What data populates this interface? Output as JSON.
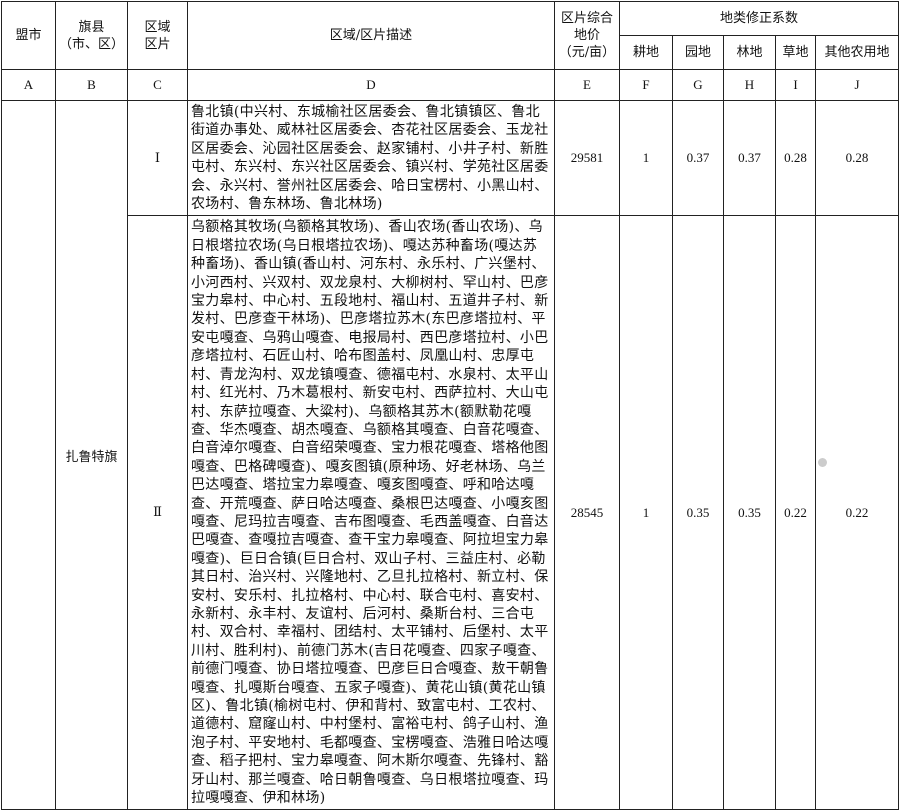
{
  "headers": {
    "league_city": "盟市",
    "banner_county": "旗县\n（市、区）",
    "zone": "区域\n区片",
    "description": "区域/区片描述",
    "price": "区片综合\n地价\n（元/亩）",
    "correction": "地类修正系数",
    "farmland": "耕地",
    "garden": "园地",
    "forest": "林地",
    "grass": "草地",
    "other": "其他农用地"
  },
  "letters": [
    "A",
    "B",
    "C",
    "D",
    "E",
    "F",
    "G",
    "H",
    "I",
    "J"
  ],
  "county": "扎鲁特旗",
  "rows": [
    {
      "zone": "Ⅰ",
      "description": "鲁北镇(中兴村、东城榆社区居委会、鲁北镇镇区、鲁北街道办事处、威林社区居委会、杏花社区居委会、玉龙社区居委会、沁园社区居委会、赵家铺村、小井子村、新胜屯村、东兴村、东兴社区居委会、镇兴村、学苑社区居委会、永兴村、誉州社区居委会、哈日宝楞村、小黑山村、农场村、鲁东林场、鲁北林场)",
      "price": "29581",
      "farmland": "1",
      "garden": "0.37",
      "forest": "0.37",
      "grass": "0.28",
      "other": "0.28"
    },
    {
      "zone": "Ⅱ",
      "description": "乌额格其牧场(乌额格其牧场)、香山农场(香山农场)、乌日根塔拉农场(乌日根塔拉农场)、嘎达苏种畜场(嘎达苏种畜场)、香山镇(香山村、河东村、永乐村、广兴堡村、小河西村、兴双村、双龙泉村、大柳树村、罕山村、巴彦宝力皋村、中心村、五段地村、福山村、五道井子村、新发村、巴彦查干林场)、巴彦塔拉苏木(东巴彦塔拉村、平安屯嘎查、乌鸦山嘎查、电报局村、西巴彦塔拉村、小巴彦塔拉村、石匠山村、哈布图盖村、凤凰山村、忠厚屯村、青龙沟村、双龙镇嘎查、德福屯村、水泉村、太平山村、红光村、乃木葛根村、新安屯村、西萨拉村、大山屯村、东萨拉嘎查、大粱村)、乌额格其苏木(额默勒花嘎查、华杰嘎查、胡杰嘎查、乌额格其嘎查、白音花嘎查、白音淖尔嘎查、白音绍荣嘎查、宝力根花嘎查、塔格他图嘎查、巴格碑嘎查)、嘎亥图镇(原种场、好老林场、乌兰巴达嘎查、塔拉宝力皋嘎查、嘎亥图嘎查、呼和哈达嘎查、开荒嘎查、萨日哈达嘎查、桑根巴达嘎查、小嘎亥图嘎查、尼玛拉吉嘎查、吉布图嘎查、毛西盖嘎查、白音达巴嘎查、查嘎拉吉嘎查、查干宝力皋嘎查、阿拉坦宝力皋嘎查)、巨日合镇(巨日合村、双山子村、三益庄村、必勒其日村、治兴村、兴隆地村、乙旦扎拉格村、新立村、保安村、安乐村、扎拉格村、中心村、联合屯村、喜安村、永新村、永丰村、友谊村、后河村、桑斯台村、三合屯村、双合村、幸福村、团结村、太平铺村、后堡村、太平川村、胜利村)、前德门苏木(吉日花嘎查、四家子嘎查、前德门嘎查、协日塔拉嘎查、巴彦巨日合嘎查、敖干朝鲁嘎查、扎嘎斯台嘎查、五家子嘎查)、黄花山镇(黄花山镇区)、鲁北镇(榆树屯村、伊和背村、致富屯村、工农村、道德村、窟窿山村、中村堡村、富裕屯村、鸽子山村、渔泡子村、平安地村、毛都嘎查、宝楞嘎查、浩雅日哈达嘎查、稻子把村、宝力皋嘎查、阿木斯尔嘎查、先锋村、豁牙山村、那兰嘎查、哈日朝鲁嘎查、乌日根塔拉嘎查、玛拉嘎嘎查、伊和林场)",
      "price": "28545",
      "farmland": "1",
      "garden": "0.35",
      "forest": "0.35",
      "grass": "0.22",
      "other": "0.22"
    }
  ]
}
